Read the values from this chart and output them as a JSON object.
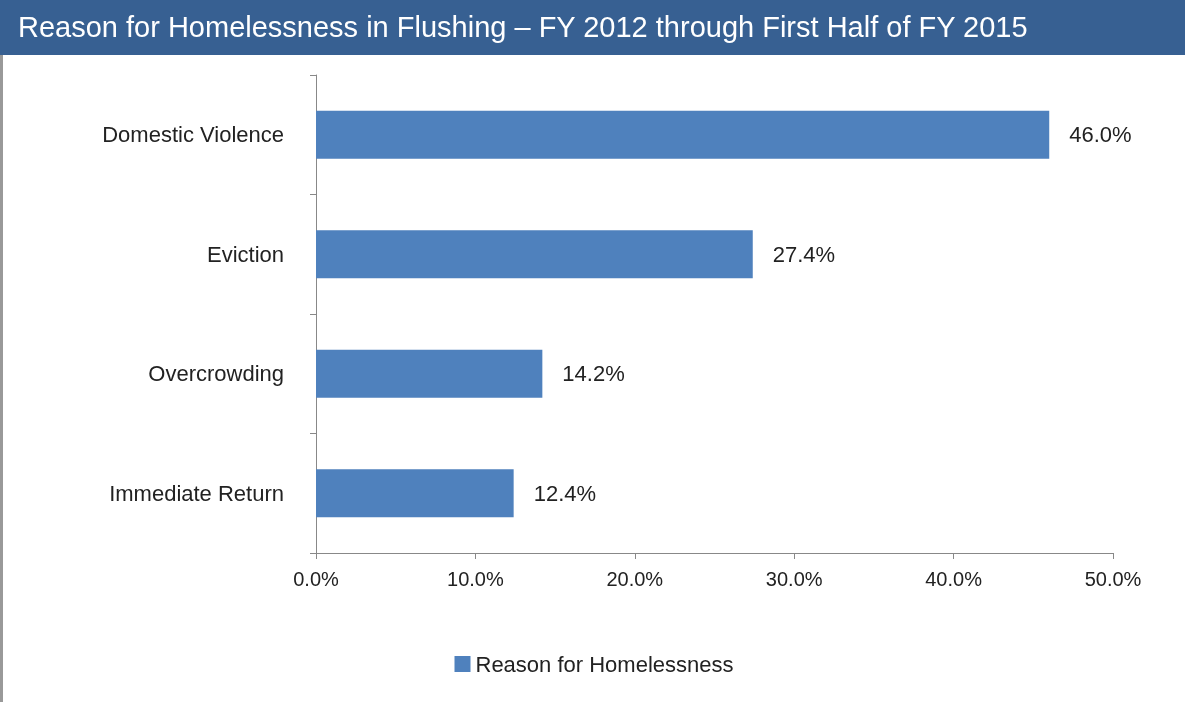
{
  "chart_data": {
    "type": "bar",
    "orientation": "horizontal",
    "title": "Reason for Homelessness in Flushing – FY 2012 through First Half of FY 2015",
    "categories": [
      "Domestic Violence",
      "Eviction",
      "Overcrowding",
      "Immediate Return"
    ],
    "series": [
      {
        "name": "Reason for Homelessness",
        "color": "#4f81bd",
        "values": [
          46.0,
          27.4,
          14.2,
          12.4
        ],
        "value_labels": [
          "46.0%",
          "27.4%",
          "14.2%",
          "12.4%"
        ]
      }
    ],
    "xlim": [
      0,
      50
    ],
    "xticks": [
      {
        "value": 0,
        "label": "0.0%"
      },
      {
        "value": 10,
        "label": "10.0%"
      },
      {
        "value": 20,
        "label": "20.0%"
      },
      {
        "value": 30,
        "label": "30.0%"
      },
      {
        "value": 40,
        "label": "40.0%"
      },
      {
        "value": 50,
        "label": "50.0%"
      }
    ],
    "grid": false,
    "legend": "bottom"
  }
}
